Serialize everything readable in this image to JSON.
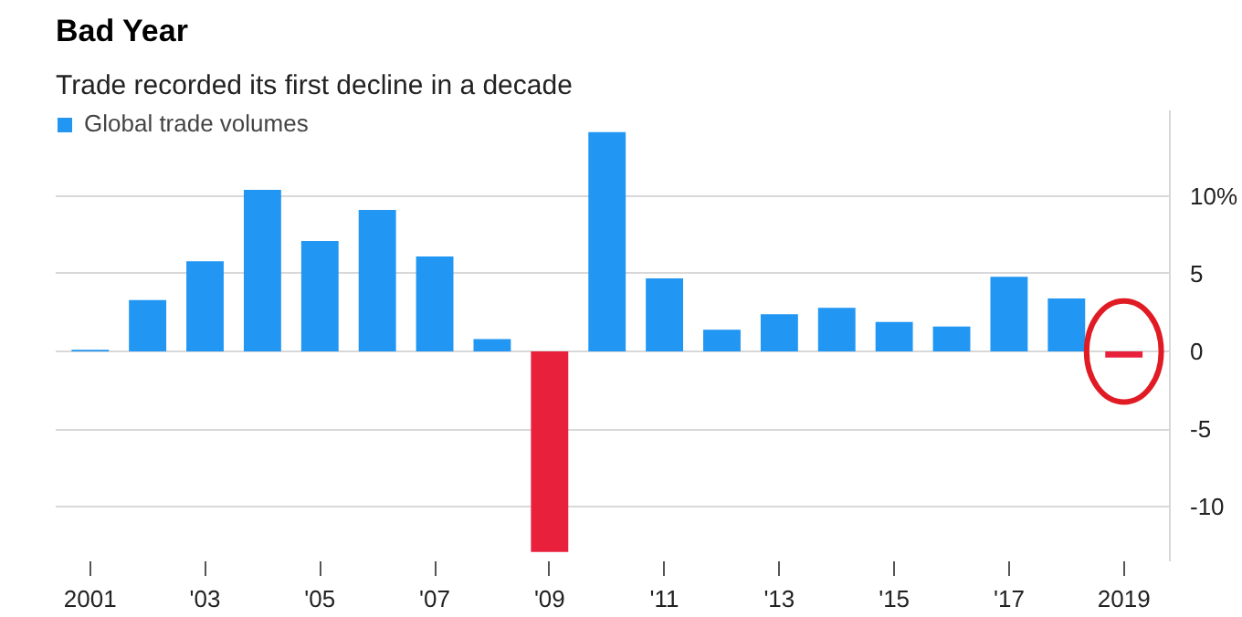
{
  "chart_data": {
    "type": "bar",
    "title": "Bad Year",
    "subtitle": "Trade recorded its first decline in a decade",
    "categories": [
      "2001",
      null,
      "'03",
      null,
      "'05",
      null,
      "'07",
      null,
      "'09",
      null,
      "'11",
      null,
      "'13",
      null,
      "'15",
      null,
      "'17",
      null,
      "2019"
    ],
    "series": [
      {
        "name": "Global trade volumes",
        "values": [
          0.1,
          3.3,
          5.8,
          10.4,
          7.1,
          9.1,
          6.1,
          0.8,
          -12.9,
          14.1,
          4.7,
          1.4,
          2.4,
          2.8,
          1.9,
          1.6,
          4.8,
          3.4,
          -0.4
        ],
        "colors": [
          "#2196f3",
          "#2196f3",
          "#2196f3",
          "#2196f3",
          "#2196f3",
          "#2196f3",
          "#2196f3",
          "#2196f3",
          "#e8203c",
          "#2196f3",
          "#2196f3",
          "#2196f3",
          "#2196f3",
          "#2196f3",
          "#2196f3",
          "#2196f3",
          "#2196f3",
          "#2196f3",
          "#e8203c"
        ]
      }
    ],
    "ylim": [
      -13.5,
      15.5
    ],
    "yticks": [
      {
        "value": 10,
        "label": "10%"
      },
      5,
      0,
      -5,
      -10
    ],
    "grid": "y",
    "legend": "top left"
  }
}
